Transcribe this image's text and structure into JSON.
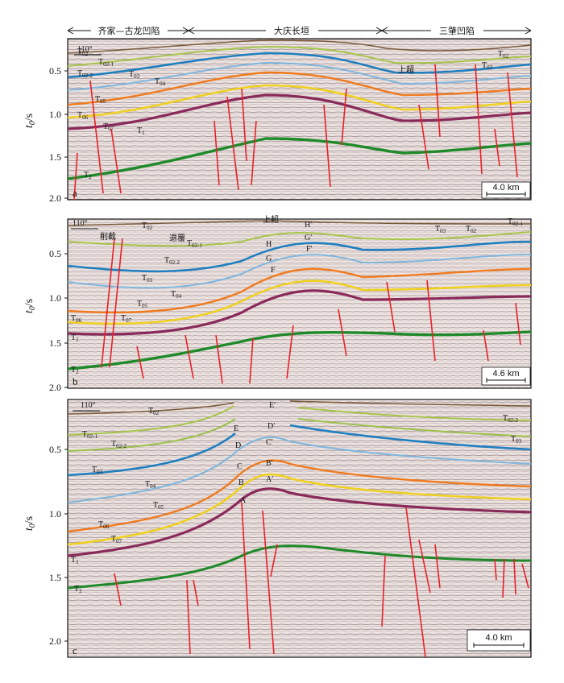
{
  "regions": {
    "left": "齐家—古龙凹陷",
    "middle": "大庆长垣",
    "right": "三肇凹陷"
  },
  "axis_title_main": "t",
  "axis_title_sub": "0",
  "axis_title_unit": "/s",
  "panels": [
    {
      "tag": "a",
      "ticks": [
        "0.5",
        "1.0",
        "1.5",
        "2.0"
      ],
      "scale_label": "4.0 km",
      "orientation": "110°",
      "horizons": [
        {
          "name": "T02",
          "color": "#7a5a3a"
        },
        {
          "name": "T02-1",
          "color": "#a8c44a"
        },
        {
          "name": "T02-2",
          "color": "#9bc04a"
        },
        {
          "name": "T03",
          "color": "#1f7fc0"
        },
        {
          "name": "T04",
          "color": "#7fb6de"
        },
        {
          "name": "T05",
          "color": "#7fb6de"
        },
        {
          "name": "T06",
          "color": "#f07a1e"
        },
        {
          "name": "T07",
          "color": "#f0d020"
        },
        {
          "name": "T1",
          "color": "#8a2a5a"
        },
        {
          "name": "T2",
          "color": "#1f8a2a"
        }
      ],
      "labels": [
        "T02",
        "T02-1",
        "T02-2",
        "T03",
        "T04",
        "T05",
        "T06",
        "T07",
        "T1",
        "T2",
        "上超",
        "T02",
        "T03"
      ]
    },
    {
      "tag": "b",
      "ticks": [
        "0.5",
        "1.0",
        "1.5",
        "2.0"
      ],
      "scale_label": "4.6 km",
      "orientation": "110°",
      "labels": [
        "T02",
        "削截",
        "退覆",
        "T02-1",
        "T02-2",
        "T03",
        "T04",
        "T05",
        "T06",
        "T07",
        "T1",
        "T2",
        "上超",
        "H",
        "G",
        "F",
        "H'",
        "G'",
        "F'",
        "T03",
        "T02",
        "T02-1"
      ]
    },
    {
      "tag": "c",
      "ticks": [
        "0.5",
        "1.0",
        "1.5",
        "2.0"
      ],
      "scale_label": "4.0 km",
      "orientation": "110°",
      "labels": [
        "T02",
        "T02-1",
        "T02-2",
        "T03",
        "T04",
        "T05",
        "T06",
        "T07",
        "T1",
        "T2",
        "E",
        "D",
        "C",
        "B",
        "A",
        "E'",
        "D'",
        "C'",
        "B'",
        "A'",
        "T02-2",
        "T03"
      ]
    }
  ],
  "colors": {
    "seismic_bg": "#e9dcd8",
    "fault": "#e8202a"
  }
}
